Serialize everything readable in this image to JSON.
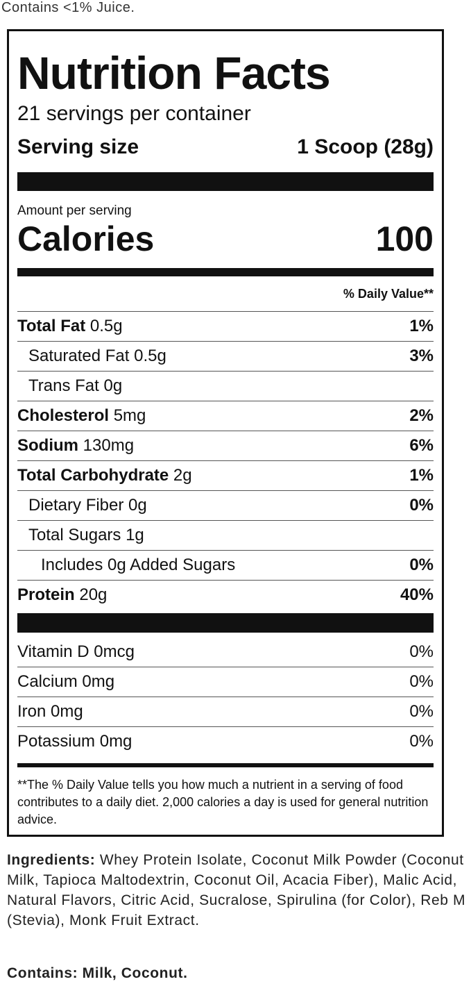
{
  "top_note": "Contains <1% Juice.",
  "label": {
    "title": "Nutrition Facts",
    "servings": "21 servings per container",
    "serving_size_label": "Serving size",
    "serving_size_value": "1 Scoop (28g)",
    "amount_per_serving": "Amount per serving",
    "calories_label": "Calories",
    "calories_value": "100",
    "dv_header": "% Daily Value**",
    "nutrients": [
      {
        "name": "Total Fat",
        "amount": "0.5g",
        "dv": "1%"
      },
      {
        "name": "Saturated Fat",
        "amount": "0.5g",
        "dv": "3%"
      },
      {
        "name": "Trans Fat",
        "amount": "0g"
      },
      {
        "name": "Cholesterol",
        "amount": "5mg",
        "dv": "2%"
      },
      {
        "name": "Sodium",
        "amount": "130mg",
        "dv": "6%"
      },
      {
        "name": "Total Carbohydrate",
        "amount": "2g",
        "dv": "1%"
      },
      {
        "name": "Dietary Fiber",
        "amount": "0g",
        "dv": "0%"
      },
      {
        "name": "Total Sugars",
        "amount": "1g"
      },
      {
        "name": "Includes 0g Added Sugars",
        "dv": "0%"
      },
      {
        "name": "Protein",
        "amount": "20g",
        "dv": "40%"
      }
    ],
    "vitamins": [
      {
        "name": "Vitamin D",
        "amount": "0mcg",
        "dv": "0%"
      },
      {
        "name": "Calcium",
        "amount": "0mg",
        "dv": "0%"
      },
      {
        "name": "Iron",
        "amount": "0mg",
        "dv": "0%"
      },
      {
        "name": "Potassium",
        "amount": "0mg",
        "dv": "0%"
      }
    ],
    "footnote": "**The % Daily Value tells you how much a nutrient in a serving of food contributes to a daily diet. 2,000 calories a day is used for general nutrition advice."
  },
  "ingredients": {
    "label": "Ingredients:",
    "text": "Whey Protein Isolate, Coconut Milk Powder (Coconut Milk, Tapioca Maltodextrin, Coconut Oil, Acacia Fiber), Malic Acid, Natural Flavors, Citric Acid, Sucralose, Spirulina (for Color), Reb M (Stevia), Monk Fruit Extract."
  },
  "contains": {
    "label": "Contains:",
    "text": "Milk, Coconut."
  }
}
